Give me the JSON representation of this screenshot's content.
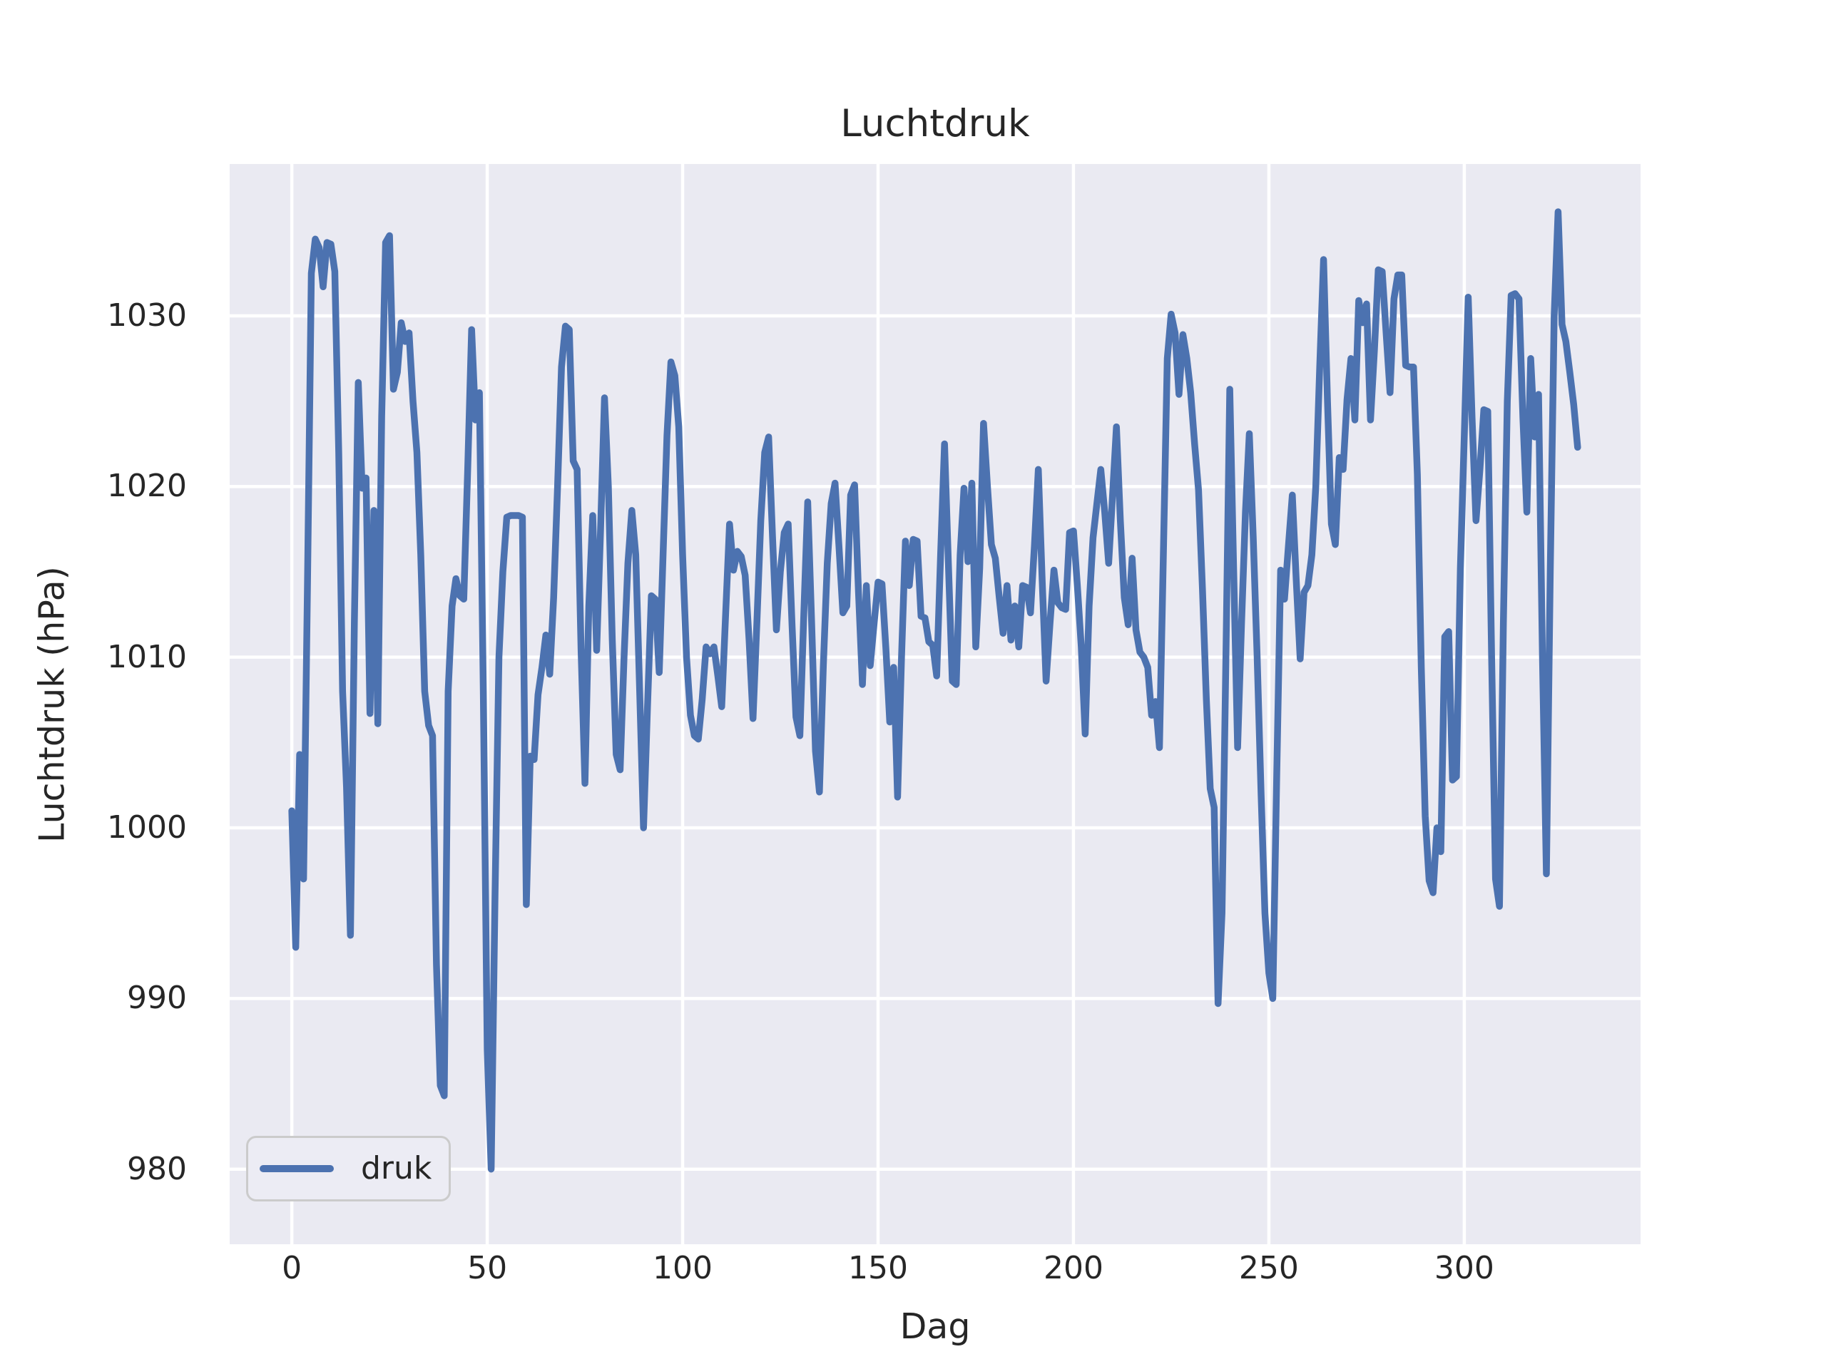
{
  "figure": {
    "title": "Luchtdruk",
    "x_axis_label": "Dag",
    "y_axis_label": "Luchtdruk (hPa)",
    "legend": {
      "label": "druk"
    }
  },
  "chart_data": {
    "type": "line",
    "title": "Luchtdruk",
    "xlabel": "Dag",
    "ylabel": "Luchtdruk (hPa)",
    "legend_entries": [
      "druk"
    ],
    "legend_position": "lower left",
    "grid": true,
    "axes_background": "#eaeaf2",
    "grid_color": "#ffffff",
    "text_color": "#262626",
    "line_color": "#4c72b0",
    "xlim": [
      -15.9,
      345.1
    ],
    "ylim": [
      975.6,
      1038.9
    ],
    "xticks": [
      0,
      50,
      100,
      150,
      200,
      250,
      300
    ],
    "yticks": [
      980,
      990,
      1000,
      1010,
      1020,
      1030
    ],
    "series": [
      {
        "name": "druk",
        "color": "#4c72b0",
        "x_start": 0,
        "x_step": 1,
        "values": [
          1001.0,
          993.0,
          1004.3,
          997.0,
          1014.0,
          1032.5,
          1034.5,
          1034.0,
          1031.7,
          1034.3,
          1034.2,
          1032.6,
          1022.0,
          1008.0,
          1002.4,
          993.7,
          1012.0,
          1026.1,
          1019.9,
          1020.5,
          1006.7,
          1018.6,
          1006.1,
          1024.1,
          1034.3,
          1034.7,
          1025.7,
          1026.7,
          1029.6,
          1028.5,
          1029.0,
          1025.0,
          1022.0,
          1016.0,
          1008.0,
          1006.0,
          1005.4,
          992.0,
          984.9,
          984.3,
          1008.0,
          1013.0,
          1014.6,
          1013.6,
          1013.4,
          1021.0,
          1029.2,
          1023.9,
          1025.5,
          1008.0,
          987.0,
          980.0,
          996.0,
          1010.0,
          1015.0,
          1018.2,
          1018.3,
          1018.3,
          1018.3,
          1018.2,
          995.5,
          1004.2,
          1004.0,
          1007.8,
          1009.4,
          1011.3,
          1009.0,
          1013.5,
          1020.0,
          1027.0,
          1029.4,
          1029.2,
          1021.5,
          1021.0,
          1010.5,
          1002.6,
          1013.0,
          1018.3,
          1010.4,
          1017.5,
          1025.2,
          1020.0,
          1011.0,
          1004.3,
          1003.4,
          1010.0,
          1015.5,
          1018.6,
          1016.0,
          1008.0,
          1000.0,
          1007.0,
          1013.6,
          1013.4,
          1009.1,
          1016.0,
          1023.0,
          1027.3,
          1026.5,
          1023.5,
          1016.0,
          1010.0,
          1006.6,
          1005.4,
          1005.2,
          1007.5,
          1010.6,
          1010.2,
          1010.6,
          1008.9,
          1007.1,
          1012.5,
          1017.8,
          1015.1,
          1016.2,
          1015.9,
          1014.8,
          1011.0,
          1006.4,
          1012.0,
          1018.0,
          1022.0,
          1022.9,
          1017.0,
          1011.6,
          1015.0,
          1017.3,
          1017.8,
          1011.8,
          1006.5,
          1005.4,
          1012.5,
          1019.1,
          1012.0,
          1004.5,
          1002.1,
          1009.5,
          1015.5,
          1019.0,
          1020.2,
          1016.5,
          1012.6,
          1013.0,
          1019.5,
          1020.1,
          1013.8,
          1008.4,
          1014.2,
          1009.5,
          1012.0,
          1014.4,
          1014.3,
          1010.5,
          1006.2,
          1009.4,
          1001.8,
          1010.0,
          1016.8,
          1014.2,
          1016.9,
          1016.8,
          1012.4,
          1012.3,
          1010.9,
          1010.7,
          1008.9,
          1016.0,
          1022.5,
          1015.5,
          1008.6,
          1008.4,
          1016.0,
          1019.9,
          1015.6,
          1020.2,
          1010.6,
          1015.2,
          1023.7,
          1020.0,
          1016.6,
          1015.8,
          1013.5,
          1011.4,
          1014.2,
          1011.0,
          1013.0,
          1010.6,
          1014.2,
          1014.1,
          1012.6,
          1016.5,
          1021.0,
          1014.5,
          1008.6,
          1012.0,
          1015.1,
          1013.2,
          1012.9,
          1012.8,
          1017.3,
          1017.4,
          1014.2,
          1010.6,
          1005.5,
          1013.0,
          1017.0,
          1019.0,
          1021.0,
          1018.5,
          1015.5,
          1019.5,
          1023.5,
          1018.0,
          1013.5,
          1011.9,
          1015.8,
          1011.6,
          1010.3,
          1010.0,
          1009.4,
          1006.6,
          1007.4,
          1004.7,
          1016.0,
          1027.5,
          1030.1,
          1029.0,
          1025.4,
          1028.9,
          1027.5,
          1025.5,
          1022.5,
          1019.8,
          1014.0,
          1007.5,
          1002.3,
          1001.2,
          989.7,
          995.0,
          1010.0,
          1025.7,
          1015.0,
          1004.7,
          1012.0,
          1018.5,
          1023.1,
          1017.0,
          1010.0,
          1002.0,
          995.0,
          991.5,
          990.0,
          1003.0,
          1015.1,
          1013.4,
          1016.5,
          1019.5,
          1014.5,
          1009.9,
          1013.8,
          1014.2,
          1016.0,
          1020.0,
          1027.0,
          1033.3,
          1025.0,
          1017.8,
          1016.6,
          1021.7,
          1021.0,
          1025.1,
          1027.5,
          1023.9,
          1030.9,
          1029.6,
          1030.7,
          1023.9,
          1028.0,
          1032.7,
          1032.6,
          1029.0,
          1025.5,
          1031.0,
          1032.4,
          1032.4,
          1027.1,
          1027.0,
          1027.0,
          1020.7,
          1009.4,
          1000.7,
          996.9,
          996.2,
          1000.0,
          998.6,
          1011.2,
          1011.5,
          1002.8,
          1003.0,
          1015.2,
          1023.0,
          1031.1,
          1024.0,
          1018.0,
          1021.0,
          1024.5,
          1024.4,
          1010.0,
          997.0,
          995.4,
          1012.0,
          1025.0,
          1031.2,
          1031.3,
          1031.0,
          1024.0,
          1018.5,
          1027.5,
          1022.9,
          1025.4,
          1010.0,
          997.3,
          1015.0,
          1030.0,
          1036.1,
          1029.5,
          1028.5,
          1026.7,
          1024.8,
          1022.3
        ]
      }
    ]
  }
}
